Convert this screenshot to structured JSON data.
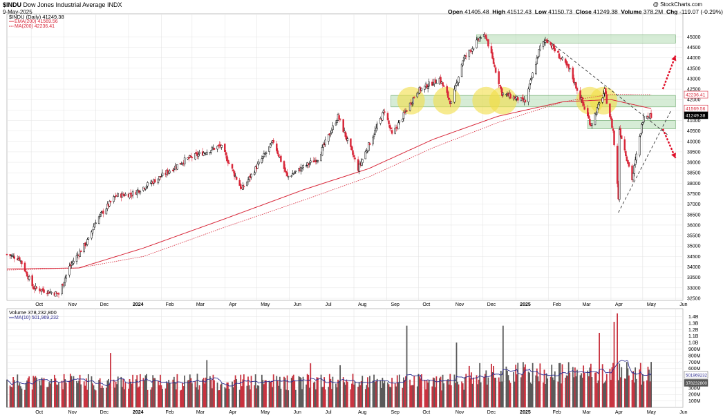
{
  "header": {
    "title": "$INDU Dow Jones Industrial Average INDX",
    "symbol": "$INDU",
    "name": "Dow Jones Industrial Average",
    "exchange": "INDX",
    "date": "9-May-2025",
    "watermark": "@ StockCharts.com",
    "ohlc": {
      "open_label": "Open",
      "open": "41405.48",
      "high_label": "High",
      "high": "41512.43",
      "low_label": "Low",
      "low": "41150.73",
      "close_label": "Close",
      "close": "41249.38",
      "volume_label": "Volume",
      "volume": "378.2M",
      "chg_label": "Chg",
      "chg": "-119.07 (-0.29%)"
    }
  },
  "legend": {
    "price": "$INDU (Daily) 41249.38",
    "ema": "EMA(200) 41569.56",
    "ma": "MA(200) 42236.41",
    "volume": "Volume 378,232,800",
    "volume_ma": "MA(10) 501,969,232"
  },
  "colors": {
    "up": "#000000",
    "down": "#d8283a",
    "ema": "#d8283a",
    "ma": "#d8283a",
    "vol_up": "#5a5a5a",
    "vol_down": "#c8323f",
    "vol_ma": "#2b2b8f",
    "zone": "#b4dcb4",
    "circle": "#f2de46",
    "arrow": "#e0102a",
    "grid": "#e4e4e4"
  },
  "chart_data": {
    "type": "candlestick",
    "x_tick_labels": [
      "Oct",
      "Nov",
      "Dec",
      "2024",
      "Feb",
      "Mar",
      "Apr",
      "May",
      "Jun",
      "Jul",
      "Aug",
      "Sep",
      "Oct",
      "Nov",
      "Dec",
      "2025",
      "Feb",
      "Mar",
      "Apr",
      "May",
      "Jun"
    ],
    "y_range": [
      32400,
      46100
    ],
    "y_ticks": [
      "32500",
      "33000",
      "33500",
      "34000",
      "34500",
      "35000",
      "35500",
      "36000",
      "36500",
      "37000",
      "37500",
      "38000",
      "38500",
      "39000",
      "39500",
      "40000",
      "40500",
      "41000",
      "41500",
      "42000",
      "42500",
      "43000",
      "43500",
      "44000",
      "44500",
      "45000"
    ],
    "axis_tags": [
      {
        "text": "42236.41",
        "value": 42236.41,
        "style": "ma"
      },
      {
        "text": "41569.56",
        "value": 41569.56,
        "style": "ema"
      },
      {
        "text": "41249.38",
        "value": 41249.38,
        "style": "close"
      }
    ],
    "close_series_anchors": [
      {
        "date": "2023-09-08",
        "close": 34600
      },
      {
        "date": "2023-09-20",
        "close": 34400
      },
      {
        "date": "2023-10-03",
        "close": 33000
      },
      {
        "date": "2023-10-27",
        "close": 32700
      },
      {
        "date": "2023-11-06",
        "close": 34000
      },
      {
        "date": "2023-11-24",
        "close": 35300
      },
      {
        "date": "2023-12-01",
        "close": 36200
      },
      {
        "date": "2023-12-20",
        "close": 37400
      },
      {
        "date": "2024-01-05",
        "close": 37500
      },
      {
        "date": "2024-01-31",
        "close": 38300
      },
      {
        "date": "2024-02-23",
        "close": 39100
      },
      {
        "date": "2024-03-28",
        "close": 39800
      },
      {
        "date": "2024-04-17",
        "close": 37700
      },
      {
        "date": "2024-05-17",
        "close": 40000
      },
      {
        "date": "2024-05-30",
        "close": 38300
      },
      {
        "date": "2024-06-28",
        "close": 39200
      },
      {
        "date": "2024-07-17",
        "close": 41200
      },
      {
        "date": "2024-08-05",
        "close": 38700
      },
      {
        "date": "2024-08-30",
        "close": 41500
      },
      {
        "date": "2024-09-06",
        "close": 40300
      },
      {
        "date": "2024-09-30",
        "close": 42400
      },
      {
        "date": "2024-10-21",
        "close": 43000
      },
      {
        "date": "2024-11-01",
        "close": 41800
      },
      {
        "date": "2024-11-12",
        "close": 43900
      },
      {
        "date": "2024-11-29",
        "close": 45000
      },
      {
        "date": "2024-12-04",
        "close": 45000
      },
      {
        "date": "2024-12-19",
        "close": 42300
      },
      {
        "date": "2025-01-10",
        "close": 41900
      },
      {
        "date": "2025-01-24",
        "close": 44500
      },
      {
        "date": "2025-01-30",
        "close": 44900
      },
      {
        "date": "2025-02-21",
        "close": 43400
      },
      {
        "date": "2025-03-13",
        "close": 40800
      },
      {
        "date": "2025-03-26",
        "close": 42400
      },
      {
        "date": "2025-04-03",
        "close": 40500
      },
      {
        "date": "2025-04-08",
        "close": 37300
      },
      {
        "date": "2025-04-09",
        "close": 40600
      },
      {
        "date": "2025-04-21",
        "close": 38200
      },
      {
        "date": "2025-05-02",
        "close": 41300
      },
      {
        "date": "2025-05-09",
        "close": 41249
      }
    ],
    "ema200_anchors": [
      {
        "date": "2023-09-08",
        "value": 33900
      },
      {
        "date": "2023-11-15",
        "value": 33950
      },
      {
        "date": "2024-01-15",
        "value": 34900
      },
      {
        "date": "2024-04-01",
        "value": 36300
      },
      {
        "date": "2024-06-15",
        "value": 37700
      },
      {
        "date": "2024-08-15",
        "value": 38700
      },
      {
        "date": "2024-10-15",
        "value": 40100
      },
      {
        "date": "2024-12-15",
        "value": 41200
      },
      {
        "date": "2025-02-15",
        "value": 41900
      },
      {
        "date": "2025-04-01",
        "value": 42000
      },
      {
        "date": "2025-05-09",
        "value": 41570
      }
    ],
    "ma200_anchors": [
      {
        "date": "2023-09-08",
        "value": 33850
      },
      {
        "date": "2023-11-15",
        "value": 33950
      },
      {
        "date": "2024-01-15",
        "value": 34500
      },
      {
        "date": "2024-04-01",
        "value": 35900
      },
      {
        "date": "2024-06-15",
        "value": 37200
      },
      {
        "date": "2024-08-15",
        "value": 38300
      },
      {
        "date": "2024-10-15",
        "value": 39700
      },
      {
        "date": "2024-12-15",
        "value": 40900
      },
      {
        "date": "2025-02-15",
        "value": 41900
      },
      {
        "date": "2025-04-01",
        "value": 42250
      },
      {
        "date": "2025-05-09",
        "value": 42236
      }
    ],
    "zones": [
      {
        "from": "2024-11-25",
        "to": "2025-06-01",
        "low": 44700,
        "high": 45100
      },
      {
        "from": "2024-09-05",
        "to": "2025-06-01",
        "low": 41650,
        "high": 42200
      },
      {
        "from": "2025-03-10",
        "to": "2025-06-01",
        "low": 40600,
        "high": 41000
      }
    ],
    "highlight_circles": [
      {
        "date": "2024-09-24",
        "value": 41950
      },
      {
        "date": "2024-10-28",
        "value": 41950
      },
      {
        "date": "2024-12-04",
        "value": 41950
      },
      {
        "date": "2024-12-20",
        "value": 41950
      },
      {
        "date": "2025-03-12",
        "value": 41950
      },
      {
        "date": "2025-03-25",
        "value": 41950
      }
    ],
    "trend_lines": [
      {
        "from": {
          "date": "2025-01-31",
          "value": 44850
        },
        "to": {
          "date": "2025-05-25",
          "value": 40300
        }
      },
      {
        "from": {
          "date": "2025-04-08",
          "value": 36600
        },
        "to": {
          "date": "2025-05-28",
          "value": 41500
        }
      }
    ],
    "arrows": [
      {
        "from": {
          "date": "2025-05-20",
          "value": 42500
        },
        "to": {
          "date": "2025-06-01",
          "value": 44100
        }
      },
      {
        "from": {
          "date": "2025-05-20",
          "value": 40600
        },
        "to": {
          "date": "2025-06-01",
          "value": 39200
        }
      }
    ],
    "volume": {
      "ticks": [
        "1.4B",
        "1.3B",
        "1.2B",
        "1.1B",
        "1.0B",
        "900M",
        "800M",
        "700M",
        "600M",
        "500M",
        "400M",
        "300M",
        "200M",
        "100M"
      ],
      "range": [
        0,
        1480000000
      ],
      "axis_tags": [
        {
          "text": "501969232",
          "value": 501969232
        },
        {
          "text": "378232800",
          "value": 378232800
        }
      ],
      "spikes": [
        {
          "date": "2023-12-15",
          "value": 840000000
        },
        {
          "date": "2024-03-15",
          "value": 730000000
        },
        {
          "date": "2024-06-21",
          "value": 680000000
        },
        {
          "date": "2024-07-19",
          "value": 650000000
        },
        {
          "date": "2024-09-20",
          "value": 1260000000
        },
        {
          "date": "2024-11-06",
          "value": 1000000000
        },
        {
          "date": "2024-12-20",
          "value": 1260000000
        },
        {
          "date": "2025-03-21",
          "value": 1150000000
        },
        {
          "date": "2025-04-04",
          "value": 1320000000
        },
        {
          "date": "2025-04-07",
          "value": 1450000000
        }
      ]
    }
  }
}
